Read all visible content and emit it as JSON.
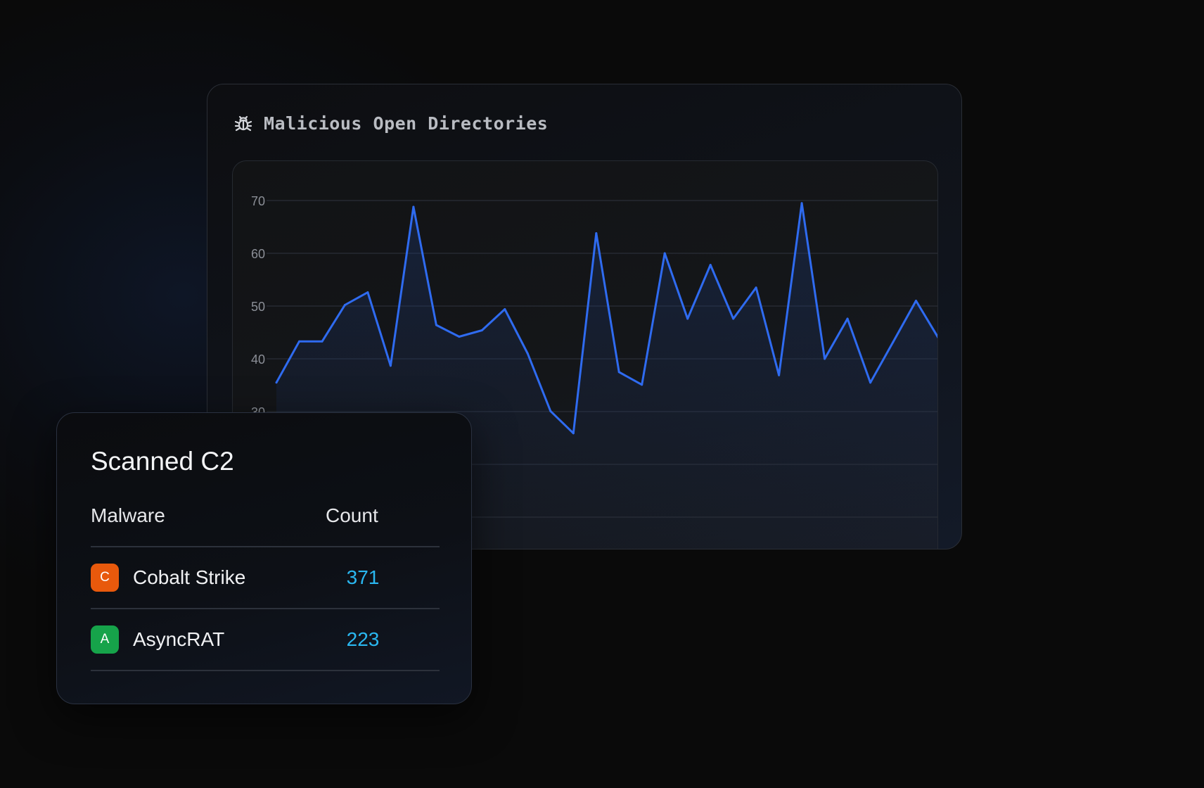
{
  "chart_card": {
    "title": "Malicious Open Directories",
    "icon": "bug-icon"
  },
  "chart_data": {
    "type": "line",
    "title": "Malicious Open Directories",
    "xlabel": "",
    "ylabel": "",
    "y_ticks": [
      70,
      60,
      50,
      40,
      30
    ],
    "ylim": [
      0,
      70
    ],
    "grid": true,
    "series": [
      {
        "values": [
          35.5,
          43.3,
          43.3,
          50.2,
          52.6,
          38.7,
          68.8,
          46.4,
          44.2,
          45.4,
          49.4,
          41.0,
          30.1,
          25.9,
          63.8,
          37.5,
          35.1,
          60.0,
          47.6,
          57.8,
          47.6,
          53.5,
          36.9,
          69.5,
          40.0,
          47.6,
          35.5,
          43.2,
          51.0,
          43.8
        ]
      }
    ],
    "colors": {
      "line": "#2f6bf0"
    }
  },
  "table_card": {
    "title": "Scanned C2",
    "headers": {
      "malware": "Malware",
      "count": "Count"
    },
    "rows": [
      {
        "initial": "C",
        "name": "Cobalt Strike",
        "count": "371",
        "badge_color": "#e8590c"
      },
      {
        "initial": "A",
        "name": "AsyncRAT",
        "count": "223",
        "badge_color": "#16a34a"
      }
    ]
  }
}
